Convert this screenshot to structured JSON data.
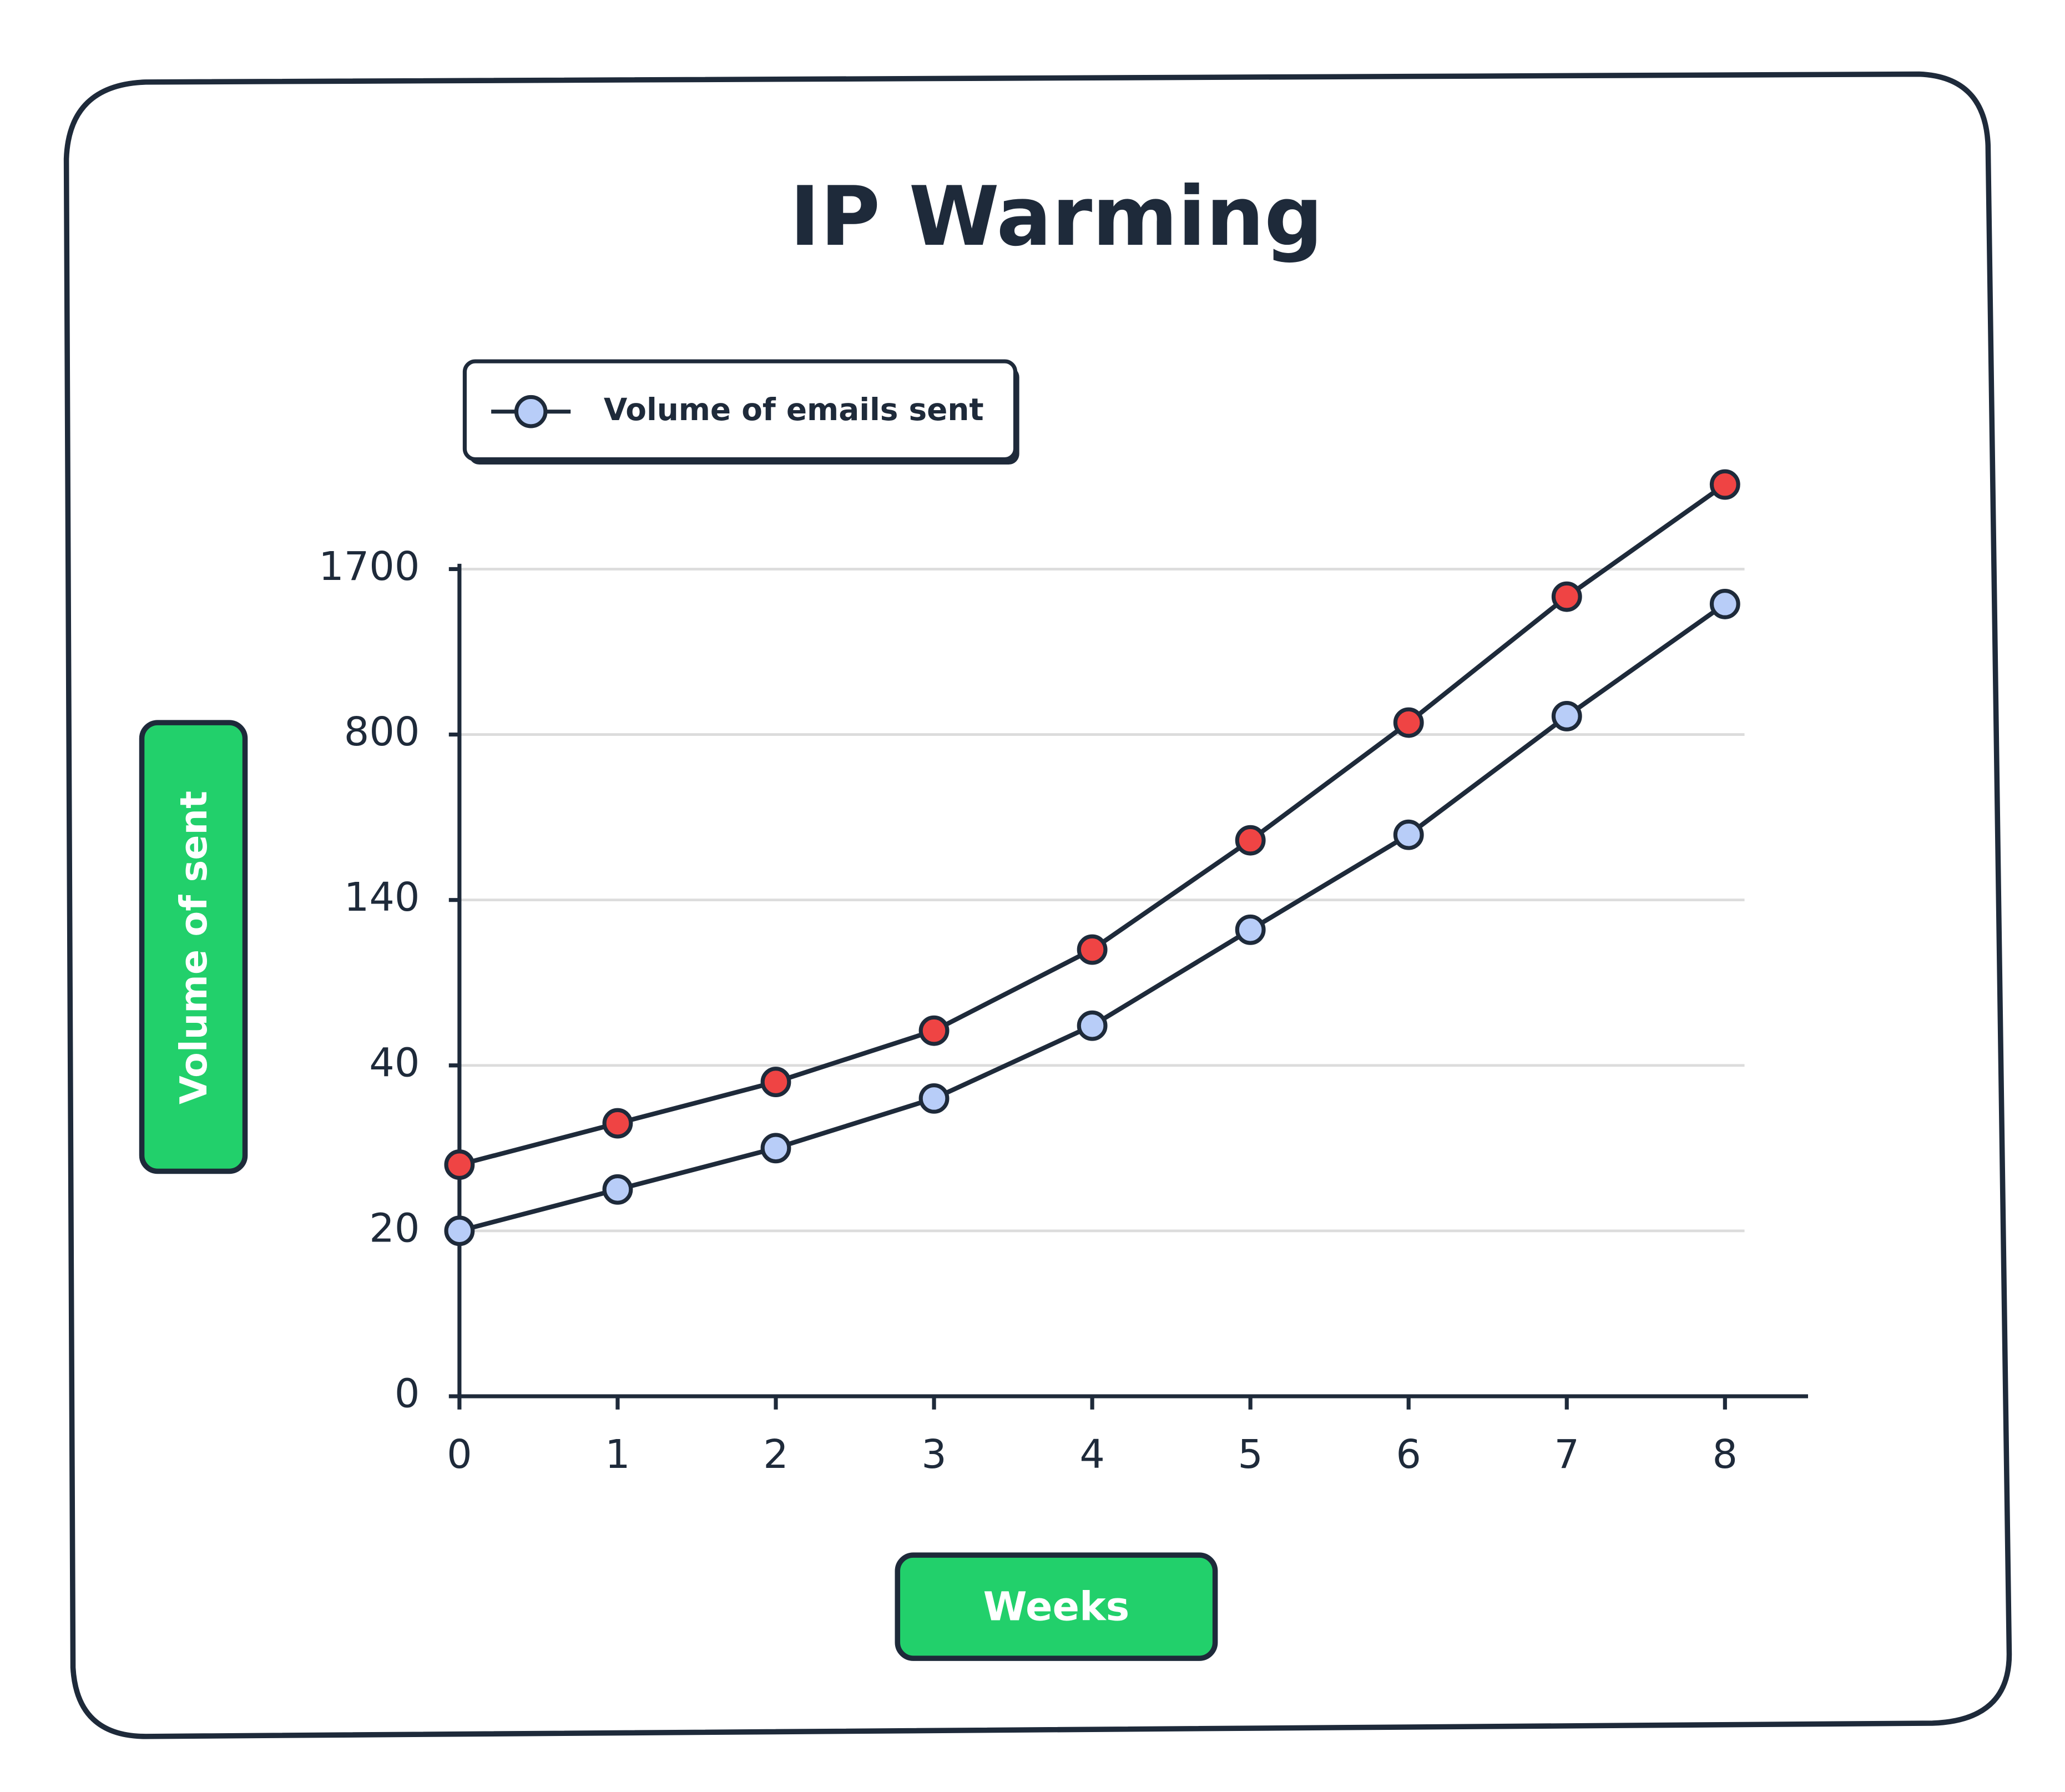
{
  "chart_data": {
    "type": "line",
    "title": "IP Warming",
    "x_label": "Weeks",
    "y_label": "Volume of sent",
    "x": [
      0,
      1,
      2,
      3,
      4,
      5,
      6,
      7,
      8
    ],
    "series": [
      {
        "name": "Volume of emails sent",
        "color": "#b8cdf8",
        "values": [
          20,
          25,
          30,
          36,
          64,
          122,
          400,
          900,
          1510
        ]
      },
      {
        "color": "#ef4444",
        "values": [
          28,
          33,
          38,
          61,
          110,
          378,
          865,
          1550,
          2160
        ]
      }
    ],
    "xlim": [
      0,
      8.5
    ],
    "xticks": [
      0,
      1,
      2,
      3,
      4,
      5,
      6,
      7,
      8
    ],
    "ylim": [
      0,
      1700
    ],
    "yticks": [
      0,
      20,
      40,
      140,
      800,
      1700
    ],
    "y_scale": "piecewise",
    "grid": true,
    "legend": "top-left"
  }
}
